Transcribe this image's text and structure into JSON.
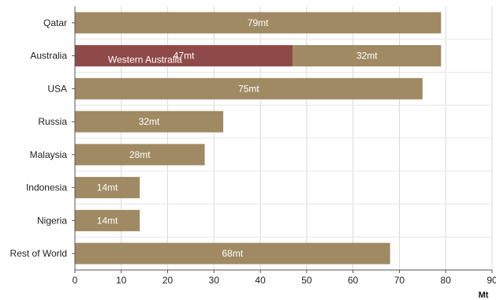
{
  "chart_data": {
    "type": "bar",
    "orientation": "horizontal",
    "stacked": true,
    "categories": [
      "Qatar",
      "Australia",
      "USA",
      "Russia",
      "Malaysia",
      "Indonesia",
      "Nigeria",
      "Rest of World"
    ],
    "series": [
      {
        "name": "Western Australia",
        "color": "#8e4a48",
        "values": [
          0,
          47,
          0,
          0,
          0,
          0,
          0,
          0
        ],
        "labels": [
          "",
          "47mt",
          "",
          "",
          "",
          "",
          "",
          ""
        ]
      },
      {
        "name": "",
        "color": "#a08a63",
        "values": [
          79,
          32,
          75,
          32,
          28,
          14,
          14,
          68
        ],
        "labels": [
          "79mt",
          "32mt",
          "75mt",
          "32mt",
          "28mt",
          "14mt",
          "14mt",
          "68mt"
        ]
      }
    ],
    "annotations": [
      {
        "category": "Australia",
        "series": "Western Australia",
        "text": "Western Australia"
      }
    ],
    "xlim": [
      0,
      90
    ],
    "xticks": [
      0,
      10,
      20,
      30,
      40,
      50,
      60,
      70,
      80,
      90
    ],
    "xlabel": "Mt",
    "grid": true
  }
}
